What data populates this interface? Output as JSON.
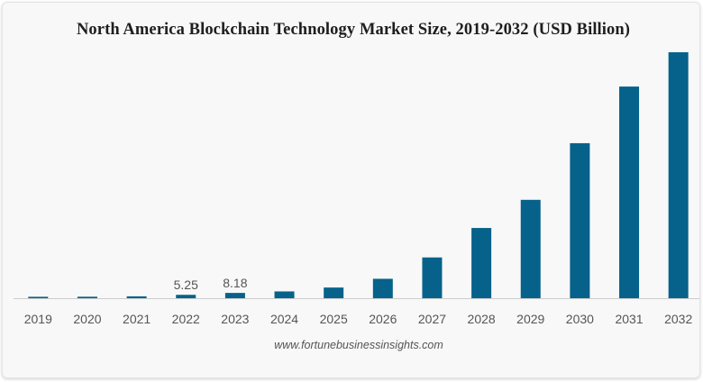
{
  "chart_data": {
    "type": "bar",
    "title": "North America Blockchain Technology Market Size, 2019-2032 (USD Billion)",
    "categories": [
      "2019",
      "2020",
      "2021",
      "2022",
      "2023",
      "2024",
      "2025",
      "2026",
      "2027",
      "2028",
      "2029",
      "2030",
      "2031",
      "2032"
    ],
    "values": [
      2.2,
      2.3,
      2.9,
      5.25,
      8.18,
      10.5,
      16.5,
      30.0,
      63.0,
      108.5,
      152.0,
      239.5,
      327.0,
      380.0
    ],
    "data_labels": {
      "2022": "5.25",
      "2023": "8.18"
    },
    "xlabel": "",
    "ylabel": "",
    "ylim": [
      0,
      380
    ],
    "grid": false,
    "bar_color": "#06628a",
    "axis_color": "#cccccc",
    "tick_label_color": "#555555"
  },
  "source_text": "www.fortunebusinessinsights.com"
}
